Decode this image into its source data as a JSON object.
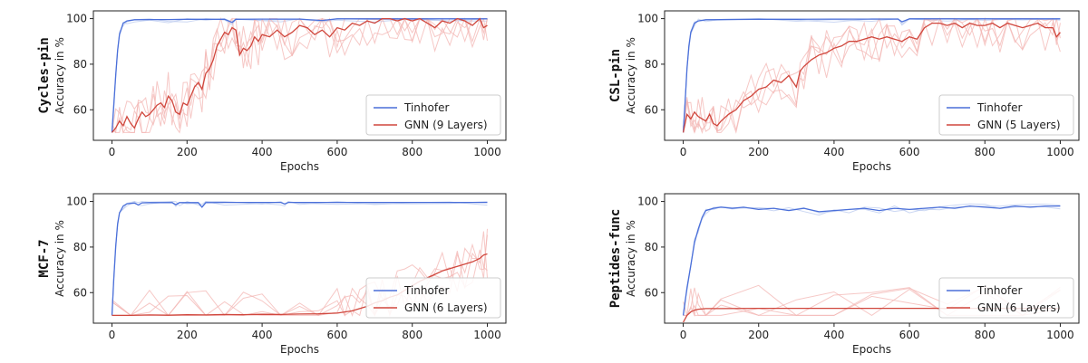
{
  "colors": {
    "tinhofer": "#4a6fd9",
    "gnn": "#d0473d",
    "gnn_runs": "#f3b6b3",
    "tinhofer_runs": "#b9c9ef"
  },
  "chart_data": [
    {
      "type": "line",
      "title": "Cycles-pin",
      "xlabel": "Epochs",
      "ylabel": "Accuracy in %",
      "xlim": [
        0,
        1000
      ],
      "ylim": [
        50,
        100
      ],
      "xticks": [
        0,
        200,
        400,
        600,
        800,
        1000
      ],
      "yticks": [
        60,
        80,
        100
      ],
      "legend_position": "bottom-right",
      "series": [
        {
          "name": "Tinhofer",
          "role": "tinhofer",
          "x": [
            0,
            5,
            10,
            15,
            20,
            30,
            40,
            60,
            100,
            150,
            200,
            250,
            300,
            320,
            330,
            400,
            450,
            500,
            560,
            600,
            700,
            800,
            900,
            1000
          ],
          "y": [
            50,
            62,
            75,
            86,
            93,
            98,
            99,
            99.5,
            99.6,
            99.6,
            99.7,
            99.7,
            99.7,
            98.3,
            99.7,
            99.8,
            99.8,
            99.8,
            99.2,
            99.9,
            99.9,
            99.9,
            99.9,
            99.9
          ]
        },
        {
          "name": "GNN (9 Layers)",
          "role": "gnn",
          "x": [
            0,
            10,
            20,
            30,
            40,
            50,
            60,
            70,
            80,
            90,
            100,
            110,
            120,
            130,
            140,
            150,
            160,
            170,
            180,
            190,
            200,
            210,
            220,
            230,
            240,
            250,
            260,
            270,
            280,
            290,
            300,
            310,
            320,
            330,
            340,
            350,
            360,
            370,
            380,
            390,
            400,
            420,
            440,
            460,
            480,
            500,
            520,
            540,
            560,
            580,
            600,
            620,
            640,
            660,
            680,
            700,
            720,
            740,
            760,
            780,
            800,
            820,
            840,
            860,
            880,
            900,
            920,
            940,
            960,
            980,
            990,
            1000
          ],
          "y": [
            50,
            52,
            55,
            53,
            57,
            54,
            52,
            56,
            59,
            57,
            58,
            60,
            62,
            63,
            61,
            66,
            64,
            59,
            58,
            63,
            62,
            66,
            70,
            72,
            69,
            76,
            78,
            82,
            88,
            91,
            94,
            93,
            96,
            95,
            84,
            87,
            86,
            88,
            92,
            90,
            93,
            92,
            95,
            92,
            94,
            97,
            96,
            93,
            95,
            92,
            96,
            95,
            98,
            97,
            99,
            98,
            100,
            100,
            99,
            100,
            99,
            100,
            98,
            96,
            99,
            98,
            100,
            99,
            97,
            100,
            96,
            97
          ]
        }
      ]
    },
    {
      "type": "line",
      "title": "CSL-pin",
      "xlabel": "Epochs",
      "ylabel": "Accuracy in %",
      "xlim": [
        0,
        1000
      ],
      "ylim": [
        50,
        100
      ],
      "xticks": [
        0,
        200,
        400,
        600,
        800,
        1000
      ],
      "yticks": [
        60,
        80,
        100
      ],
      "legend_position": "bottom-right",
      "series": [
        {
          "name": "Tinhofer",
          "role": "tinhofer",
          "x": [
            0,
            5,
            10,
            15,
            20,
            30,
            40,
            60,
            100,
            200,
            300,
            400,
            500,
            570,
            580,
            600,
            700,
            800,
            900,
            1000
          ],
          "y": [
            50,
            63,
            78,
            88,
            94,
            98,
            99,
            99.5,
            99.6,
            99.7,
            99.7,
            99.8,
            99.8,
            99.8,
            98.6,
            99.9,
            99.9,
            99.9,
            99.9,
            99.9
          ]
        },
        {
          "name": "GNN (5 Layers)",
          "role": "gnn",
          "x": [
            0,
            10,
            20,
            30,
            40,
            50,
            60,
            70,
            80,
            90,
            100,
            120,
            140,
            160,
            180,
            200,
            220,
            240,
            260,
            280,
            300,
            310,
            320,
            340,
            360,
            380,
            400,
            420,
            440,
            460,
            480,
            500,
            520,
            540,
            560,
            580,
            600,
            620,
            640,
            660,
            680,
            700,
            720,
            740,
            760,
            780,
            800,
            820,
            840,
            860,
            880,
            900,
            920,
            940,
            960,
            980,
            990,
            1000
          ],
          "y": [
            50,
            58,
            56,
            59,
            57,
            56,
            55,
            58,
            54,
            53,
            55,
            58,
            60,
            64,
            66,
            69,
            70,
            73,
            72,
            75,
            70,
            77,
            79,
            82,
            84,
            85,
            87,
            88,
            90,
            90,
            91,
            92,
            91,
            92,
            91,
            90,
            92,
            91,
            96,
            98,
            98,
            97,
            98,
            96,
            98,
            97,
            97,
            98,
            96,
            98,
            97,
            96,
            97,
            98,
            96,
            96,
            92,
            94
          ]
        }
      ]
    },
    {
      "type": "line",
      "title": "MCF-7",
      "xlabel": "Epochs",
      "ylabel": "Accuracy in %",
      "xlim": [
        0,
        1000
      ],
      "ylim": [
        50,
        100
      ],
      "xticks": [
        0,
        200,
        400,
        600,
        800,
        1000
      ],
      "yticks": [
        60,
        80,
        100
      ],
      "legend_position": "bottom-right",
      "series": [
        {
          "name": "Tinhofer",
          "role": "tinhofer",
          "x": [
            0,
            5,
            10,
            15,
            20,
            30,
            40,
            60,
            70,
            80,
            100,
            160,
            170,
            180,
            200,
            230,
            240,
            250,
            300,
            400,
            450,
            460,
            470,
            500,
            600,
            700,
            800,
            900,
            1000
          ],
          "y": [
            50,
            66,
            80,
            90,
            95,
            98,
            99,
            99.3,
            98.5,
            99.4,
            99.5,
            99.5,
            98.6,
            99.5,
            99.5,
            99.5,
            97.5,
            99.5,
            99.6,
            99.6,
            99.6,
            98.9,
            99.6,
            99.6,
            99.6,
            99.6,
            99.6,
            99.6,
            99.6
          ]
        },
        {
          "name": "GNN (6 Layers)",
          "role": "gnn",
          "x": [
            0,
            50,
            100,
            150,
            200,
            250,
            300,
            350,
            400,
            450,
            500,
            550,
            600,
            620,
            640,
            660,
            680,
            700,
            720,
            740,
            760,
            780,
            800,
            820,
            840,
            860,
            880,
            900,
            920,
            940,
            960,
            980,
            990,
            1000
          ],
          "y": [
            50,
            50,
            50.2,
            50.1,
            50.3,
            50.2,
            50.4,
            50.3,
            50.5,
            50.4,
            50.6,
            50.7,
            51,
            51.5,
            52,
            53,
            54,
            55.5,
            56.5,
            58,
            59,
            61,
            63,
            65,
            66.5,
            68,
            69.5,
            70.5,
            71.5,
            72.5,
            73.5,
            75,
            76.5,
            77
          ]
        }
      ]
    },
    {
      "type": "line",
      "title": "Peptides-func",
      "xlabel": "Epochs",
      "ylabel": "Accuracy in %",
      "xlim": [
        0,
        1000
      ],
      "ylim": [
        50,
        100
      ],
      "xticks": [
        0,
        200,
        400,
        600,
        800,
        1000
      ],
      "yticks": [
        60,
        80,
        100
      ],
      "legend_position": "bottom-right",
      "series": [
        {
          "name": "Tinhofer",
          "role": "tinhofer",
          "x": [
            0,
            5,
            10,
            20,
            30,
            40,
            50,
            60,
            80,
            100,
            130,
            160,
            200,
            240,
            280,
            320,
            360,
            400,
            440,
            480,
            520,
            560,
            600,
            640,
            680,
            720,
            760,
            800,
            840,
            880,
            920,
            960,
            1000
          ],
          "y": [
            50,
            56,
            62,
            72,
            82,
            88,
            93,
            96,
            97,
            97.5,
            97,
            97.5,
            96.5,
            97,
            96,
            97,
            95.5,
            96,
            96.5,
            97,
            96,
            97,
            96.5,
            97,
            97.5,
            97,
            98,
            97.5,
            97,
            98,
            97.5,
            98,
            98
          ]
        },
        {
          "name": "GNN (6 Layers)",
          "role": "gnn",
          "x": [
            0,
            10,
            20,
            30,
            40,
            60,
            100,
            200,
            300,
            400,
            500,
            600,
            700,
            800,
            900,
            1000
          ],
          "y": [
            47,
            50,
            51.5,
            52.3,
            52.7,
            53,
            53,
            53.1,
            53.1,
            53.1,
            53.1,
            53.1,
            53.1,
            53.1,
            53.1,
            53.1
          ]
        }
      ]
    }
  ]
}
